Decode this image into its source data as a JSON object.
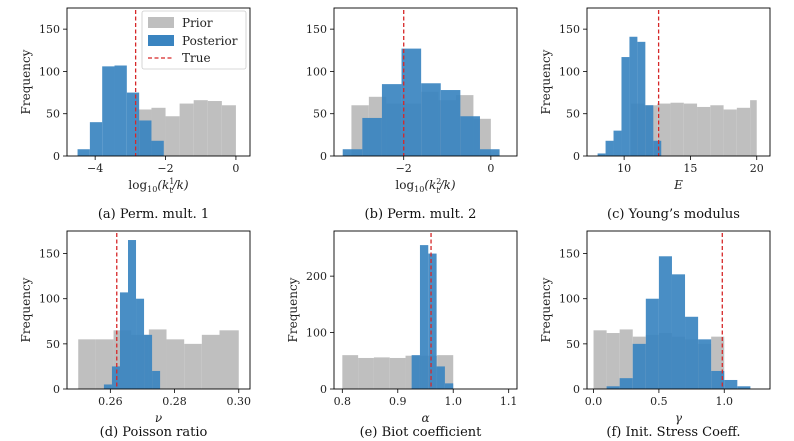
{
  "colors": {
    "prior": "#bfbfbf",
    "posterior": "#3a84c0",
    "true_line": "#d62728"
  },
  "legend": {
    "prior": "Prior",
    "posterior": "Posterior",
    "true": "True"
  },
  "chart_data": [
    {
      "type": "bar",
      "caption": "(a) Perm. mult. 1",
      "ylabel": "Frequency",
      "xlabel_parts": [
        "log",
        "10",
        "(k",
        "1",
        "t",
        "/k)"
      ],
      "xlim": [
        -4.8,
        0.4
      ],
      "ylim": [
        0,
        175
      ],
      "xticks": [
        -4,
        -2,
        0
      ],
      "xtick_labels": [
        "−4",
        "−2",
        "0"
      ],
      "yticks": [
        0,
        50,
        100,
        150
      ],
      "ytick_labels": [
        "0",
        "50",
        "100",
        "150"
      ],
      "true": -2.85,
      "legend": true,
      "prior": {
        "edges": [
          -2.8,
          -2.4,
          -2.0,
          -1.6,
          -1.2,
          -0.8,
          -0.4,
          0.0
        ],
        "counts": [
          55,
          57,
          47,
          62,
          66,
          65,
          60
        ]
      },
      "posterior": {
        "edges": [
          -4.5,
          -4.15,
          -3.8,
          -3.45,
          -3.1,
          -2.75,
          -2.4,
          -2.05
        ],
        "counts": [
          8,
          40,
          106,
          107,
          75,
          42,
          18
        ]
      }
    },
    {
      "type": "bar",
      "caption": "(b) Perm. mult. 2",
      "ylabel": "",
      "xlabel_parts": [
        "log",
        "10",
        "(k",
        "2",
        "t",
        "/k)"
      ],
      "xlim": [
        -3.6,
        0.6
      ],
      "ylim": [
        0,
        175
      ],
      "xticks": [
        -2,
        0
      ],
      "xtick_labels": [
        "−2",
        "0"
      ],
      "yticks": [
        0,
        50,
        100,
        150
      ],
      "ytick_labels": [
        "0",
        "50",
        "100",
        "150"
      ],
      "true": -2.0,
      "legend": false,
      "prior": {
        "edges": [
          -3.2,
          -2.8,
          -2.4,
          -2.0,
          -1.6,
          -1.2,
          -0.8,
          -0.4,
          0.0
        ],
        "counts": [
          60,
          70,
          62,
          62,
          76,
          66,
          72,
          44
        ]
      },
      "posterior": {
        "edges": [
          -3.4,
          -2.95,
          -2.5,
          -2.05,
          -1.6,
          -1.15,
          -0.7,
          -0.25,
          0.2
        ],
        "counts": [
          8,
          45,
          85,
          127,
          86,
          78,
          47,
          8
        ]
      }
    },
    {
      "type": "bar",
      "caption": "(c) Young’s modulus",
      "ylabel": "Frequency",
      "xlabel_parts": [
        "E"
      ],
      "xlim": [
        7.2,
        21
      ],
      "ylim": [
        0,
        175
      ],
      "xticks": [
        10,
        15,
        20
      ],
      "xtick_labels": [
        "10",
        "15",
        "20"
      ],
      "yticks": [
        0,
        50,
        100,
        150
      ],
      "ytick_labels": [
        "0",
        "50",
        "100",
        "150"
      ],
      "true": 12.6,
      "legend": false,
      "prior": {
        "edges": [
          10.5,
          11.5,
          12.5,
          13.5,
          14.5,
          15.5,
          16.5,
          17.5,
          18.5,
          19.5,
          20.0
        ],
        "counts": [
          62,
          60,
          62,
          63,
          62,
          58,
          60,
          55,
          57,
          66
        ]
      },
      "posterior": {
        "edges": [
          8.0,
          8.6,
          9.2,
          9.8,
          10.4,
          11.0,
          11.6,
          12.2,
          12.8
        ],
        "counts": [
          3,
          18,
          30,
          117,
          141,
          135,
          60,
          18
        ]
      }
    },
    {
      "type": "bar",
      "caption": "(d) Poisson ratio",
      "ylabel": "Frequency",
      "xlabel_parts": [
        "ν"
      ],
      "xlim": [
        0.2465,
        0.3035
      ],
      "ylim": [
        0,
        175
      ],
      "xticks": [
        0.26,
        0.28,
        0.3
      ],
      "xtick_labels": [
        "0.26",
        "0.28",
        "0.30"
      ],
      "yticks": [
        0,
        50,
        100,
        150
      ],
      "ytick_labels": [
        "0",
        "50",
        "100",
        "150"
      ],
      "true": 0.262,
      "legend": false,
      "prior": {
        "edges": [
          0.25,
          0.2555,
          0.261,
          0.2665,
          0.272,
          0.2775,
          0.283,
          0.2885,
          0.294,
          0.3
        ],
        "counts": [
          55,
          55,
          65,
          60,
          66,
          55,
          50,
          60,
          65
        ]
      },
      "posterior": {
        "edges": [
          0.2555,
          0.258,
          0.2605,
          0.263,
          0.2655,
          0.268,
          0.2705,
          0.273,
          0.2755
        ],
        "counts": [
          0,
          5,
          25,
          107,
          165,
          100,
          60,
          20
        ]
      }
    },
    {
      "type": "bar",
      "caption": "(e) Biot coefficient",
      "ylabel": "Frequency",
      "xlabel_parts": [
        "α"
      ],
      "xlim": [
        0.785,
        1.115
      ],
      "ylim": [
        0,
        280
      ],
      "xticks": [
        0.8,
        0.9,
        1.0,
        1.1
      ],
      "xtick_labels": [
        "0.8",
        "0.9",
        "1.0",
        "1.1"
      ],
      "yticks": [
        0,
        100,
        200
      ],
      "ytick_labels": [
        "0",
        "100",
        "200"
      ],
      "true": 0.96,
      "legend": false,
      "prior": {
        "edges": [
          0.8,
          0.8285,
          0.857,
          0.8855,
          0.914,
          0.9425,
          0.971,
          1.0
        ],
        "counts": [
          60,
          55,
          56,
          55,
          59,
          59,
          60
        ]
      },
      "posterior": {
        "edges": [
          0.925,
          0.94,
          0.955,
          0.97,
          0.985,
          1.0
        ],
        "counts": [
          60,
          255,
          240,
          40,
          10
        ]
      }
    },
    {
      "type": "bar",
      "caption": "(f) Init. Stress Coeff.",
      "ylabel": "Frequency",
      "xlabel_parts": [
        "γ"
      ],
      "xlim": [
        -0.05,
        1.35
      ],
      "ylim": [
        0,
        175
      ],
      "xticks": [
        0.0,
        0.5,
        1.0
      ],
      "xtick_labels": [
        "0.0",
        "0.5",
        "1.0"
      ],
      "yticks": [
        0,
        50,
        100,
        150
      ],
      "ytick_labels": [
        "0",
        "50",
        "100",
        "150"
      ],
      "true": 0.985,
      "legend": false,
      "prior": {
        "edges": [
          0.0,
          0.1,
          0.2,
          0.3,
          0.4,
          0.5,
          0.6,
          0.7,
          0.8,
          0.9,
          1.0
        ],
        "counts": [
          65,
          62,
          66,
          58,
          60,
          62,
          58,
          55,
          50,
          58
        ]
      },
      "posterior": {
        "edges": [
          0.1,
          0.2,
          0.3,
          0.4,
          0.5,
          0.6,
          0.7,
          0.8,
          0.9,
          1.0,
          1.1,
          1.2
        ],
        "counts": [
          3,
          12,
          50,
          100,
          147,
          127,
          80,
          55,
          20,
          10,
          3
        ]
      }
    }
  ]
}
